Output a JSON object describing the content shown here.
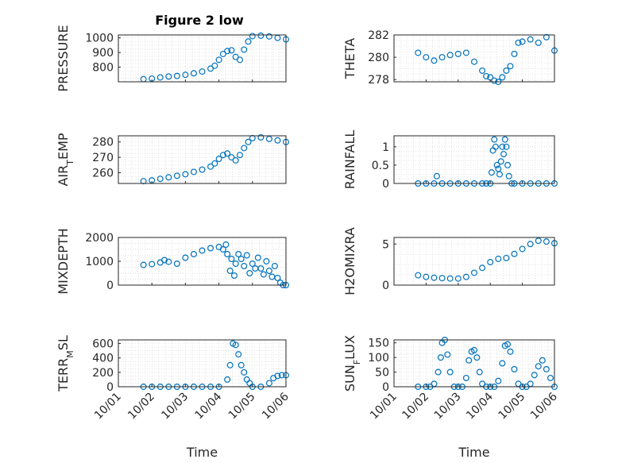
{
  "figure": {
    "title": "Figure 2 low",
    "xlabel": "Time",
    "date_tick_labels": [
      "10/01",
      "10/02",
      "10/03",
      "10/04",
      "10/05",
      "10/06"
    ],
    "marker_color": "#0072bd",
    "grid_color": "#d9d9d9",
    "axis_color": "#262626"
  },
  "chart_data": [
    {
      "type": "scatter",
      "name": "pressure-panel",
      "title": "Figure 2 low",
      "xlabel": "",
      "ylabel": "PRESSURE",
      "xlim": [
        "10/01",
        "10/06"
      ],
      "ylim": [
        700,
        1020
      ],
      "yticks": [
        800,
        900,
        1000
      ],
      "yticklabels": [
        "800",
        "900",
        "1000"
      ],
      "grid": true,
      "marker": "open-circle",
      "xtick_labels_shown": false,
      "x": [
        "10/01 18:00",
        "10/02 00:00",
        "10/02 06:00",
        "10/02 12:00",
        "10/02 18:00",
        "10/03 00:00",
        "10/03 06:00",
        "10/03 12:00",
        "10/03 18:00",
        "10/03 21:00",
        "10/04 00:00",
        "10/04 03:00",
        "10/04 06:00",
        "10/04 09:00",
        "10/04 12:00",
        "10/04 15:00",
        "10/04 18:00",
        "10/04 21:00",
        "10/05 00:00",
        "10/05 06:00",
        "10/05 12:00",
        "10/05 18:00",
        "10/06 00:00"
      ],
      "values": [
        718,
        722,
        730,
        736,
        740,
        748,
        758,
        770,
        790,
        810,
        850,
        890,
        910,
        915,
        870,
        850,
        920,
        975,
        1012,
        1015,
        1010,
        1000,
        990
      ]
    },
    {
      "type": "scatter",
      "name": "theta-panel",
      "xlabel": "",
      "ylabel": "THETA",
      "xlim": [
        "10/01",
        "10/06"
      ],
      "ylim": [
        277.8,
        282
      ],
      "yticks": [
        278,
        280,
        282
      ],
      "yticklabels": [
        "278",
        "280",
        "282"
      ],
      "grid": true,
      "marker": "open-circle",
      "xtick_labels_shown": false,
      "x": [
        "10/01 18:00",
        "10/02 00:00",
        "10/02 06:00",
        "10/02 12:00",
        "10/02 18:00",
        "10/03 00:00",
        "10/03 06:00",
        "10/03 12:00",
        "10/03 18:00",
        "10/03 21:00",
        "10/04 00:00",
        "10/04 03:00",
        "10/04 06:00",
        "10/04 09:00",
        "10/04 12:00",
        "10/04 15:00",
        "10/04 18:00",
        "10/04 21:00",
        "10/05 00:00",
        "10/05 06:00",
        "10/05 12:00",
        "10/05 18:00",
        "10/06 00:00"
      ],
      "values": [
        280.4,
        280.0,
        279.7,
        280.0,
        280.2,
        280.3,
        280.4,
        279.6,
        278.8,
        278.3,
        278.2,
        277.9,
        277.8,
        278.2,
        278.8,
        279.2,
        280.3,
        281.3,
        281.4,
        281.6,
        281.3,
        281.8,
        280.6
      ]
    },
    {
      "type": "scatter",
      "name": "air-temp-panel",
      "xlabel": "",
      "ylabel": "AIR_TEMP",
      "xlim": [
        "10/01",
        "10/06"
      ],
      "ylim": [
        253,
        284
      ],
      "yticks": [
        260,
        270,
        280
      ],
      "yticklabels": [
        "260",
        "270",
        "280"
      ],
      "grid": true,
      "marker": "open-circle",
      "xtick_labels_shown": false,
      "x": [
        "10/01 18:00",
        "10/02 00:00",
        "10/02 06:00",
        "10/02 12:00",
        "10/02 18:00",
        "10/03 00:00",
        "10/03 06:00",
        "10/03 12:00",
        "10/03 18:00",
        "10/03 21:00",
        "10/04 00:00",
        "10/04 03:00",
        "10/04 06:00",
        "10/04 09:00",
        "10/04 12:00",
        "10/04 15:00",
        "10/04 18:00",
        "10/04 21:00",
        "10/05 00:00",
        "10/05 06:00",
        "10/05 12:00",
        "10/05 18:00",
        "10/06 00:00"
      ],
      "values": [
        254.5,
        255.0,
        256.0,
        257.0,
        258.0,
        259.0,
        260.5,
        262.0,
        264.0,
        266.0,
        269.0,
        271.5,
        272.5,
        270.0,
        268.0,
        271.5,
        276.0,
        280.0,
        282.5,
        283.0,
        282.0,
        281.0,
        280.0
      ]
    },
    {
      "type": "scatter",
      "name": "rainfall-panel",
      "xlabel": "",
      "ylabel": "RAINFALL",
      "xlim": [
        "10/01",
        "10/06"
      ],
      "ylim": [
        0,
        1.3
      ],
      "yticks": [
        0,
        0.5,
        1
      ],
      "yticklabels": [
        "0",
        "0.5",
        "1"
      ],
      "grid": true,
      "marker": "open-circle",
      "xtick_labels_shown": false,
      "x": [
        "10/01 18:00",
        "10/02 00:00",
        "10/02 06:00",
        "10/02 08:00",
        "10/02 12:00",
        "10/02 18:00",
        "10/03 00:00",
        "10/03 06:00",
        "10/03 12:00",
        "10/03 18:00",
        "10/03 21:00",
        "10/04 00:00",
        "10/04 01:00",
        "10/04 02:00",
        "10/04 03:00",
        "10/04 04:00",
        "10/04 05:00",
        "10/04 06:00",
        "10/04 07:00",
        "10/04 08:00",
        "10/04 09:00",
        "10/04 10:00",
        "10/04 11:00",
        "10/04 12:00",
        "10/04 13:00",
        "10/04 14:00",
        "10/04 16:00",
        "10/04 18:00",
        "10/05 00:00",
        "10/05 06:00",
        "10/05 12:00",
        "10/05 18:00",
        "10/06 00:00"
      ],
      "values": [
        0,
        0,
        0,
        0.2,
        0,
        0,
        0,
        0,
        0,
        0,
        0,
        0,
        0.3,
        0.9,
        1.2,
        1.0,
        0.5,
        0.4,
        0.25,
        0.6,
        1.0,
        0.8,
        1.2,
        1.0,
        0.5,
        0.2,
        0,
        0,
        0,
        0,
        0,
        0,
        0
      ]
    },
    {
      "type": "scatter",
      "name": "mixdepth-panel",
      "xlabel": "",
      "ylabel": "MIXDEPTH",
      "xlim": [
        "10/01",
        "10/06"
      ],
      "ylim": [
        0,
        2000
      ],
      "yticks": [
        0,
        1000,
        2000
      ],
      "yticklabels": [
        "0",
        "1000",
        "2000"
      ],
      "grid": true,
      "marker": "open-circle",
      "xtick_labels_shown": false,
      "x": [
        "10/01 18:00",
        "10/02 00:00",
        "10/02 06:00",
        "10/02 09:00",
        "10/02 12:00",
        "10/02 18:00",
        "10/03 00:00",
        "10/03 06:00",
        "10/03 12:00",
        "10/03 18:00",
        "10/04 00:00",
        "10/04 03:00",
        "10/04 05:00",
        "10/04 06:00",
        "10/04 08:00",
        "10/04 09:00",
        "10/04 11:00",
        "10/04 12:00",
        "10/04 14:00",
        "10/04 16:00",
        "10/04 18:00",
        "10/04 20:00",
        "10/04 22:00",
        "10/05 00:00",
        "10/05 02:00",
        "10/05 04:00",
        "10/05 06:00",
        "10/05 08:00",
        "10/05 10:00",
        "10/05 12:00",
        "10/05 14:00",
        "10/05 16:00",
        "10/05 18:00",
        "10/05 20:00",
        "10/05 22:00",
        "10/06 00:00"
      ],
      "values": [
        850,
        880,
        950,
        1050,
        980,
        900,
        1150,
        1300,
        1450,
        1550,
        1600,
        1500,
        1700,
        1300,
        600,
        1100,
        400,
        900,
        1300,
        1100,
        800,
        1250,
        500,
        900,
        700,
        1150,
        700,
        450,
        1000,
        600,
        350,
        800,
        300,
        100,
        0,
        0
      ]
    },
    {
      "type": "scatter",
      "name": "h2omixra-panel",
      "xlabel": "",
      "ylabel": "H2OMIXRA",
      "xlim": [
        "10/01",
        "10/06"
      ],
      "ylim": [
        0,
        5.8
      ],
      "yticks": [
        0,
        5
      ],
      "yticklabels": [
        "0",
        "5"
      ],
      "grid": true,
      "marker": "open-circle",
      "xtick_labels_shown": false,
      "x": [
        "10/01 18:00",
        "10/02 00:00",
        "10/02 06:00",
        "10/02 12:00",
        "10/02 18:00",
        "10/03 00:00",
        "10/03 06:00",
        "10/03 12:00",
        "10/03 18:00",
        "10/04 00:00",
        "10/04 06:00",
        "10/04 12:00",
        "10/04 18:00",
        "10/05 00:00",
        "10/05 06:00",
        "10/05 12:00",
        "10/05 18:00",
        "10/06 00:00"
      ],
      "values": [
        1.2,
        1.0,
        0.9,
        0.85,
        0.8,
        0.8,
        1.0,
        1.5,
        2.1,
        2.8,
        3.2,
        3.3,
        3.8,
        4.4,
        5.0,
        5.4,
        5.3,
        5.1
      ]
    },
    {
      "type": "scatter",
      "name": "terr-msl-panel",
      "xlabel": "Time",
      "ylabel": "TERR_MSL",
      "xlim": [
        "10/01",
        "10/06"
      ],
      "ylim": [
        0,
        650
      ],
      "yticks": [
        0,
        200,
        400,
        600
      ],
      "yticklabels": [
        "0",
        "200",
        "400",
        "600"
      ],
      "grid": true,
      "marker": "open-circle",
      "xtick_labels_shown": true,
      "x": [
        "10/01 18:00",
        "10/02 00:00",
        "10/02 06:00",
        "10/02 12:00",
        "10/02 18:00",
        "10/03 00:00",
        "10/03 06:00",
        "10/03 12:00",
        "10/03 18:00",
        "10/04 00:00",
        "10/04 06:00",
        "10/04 08:00",
        "10/04 10:00",
        "10/04 12:00",
        "10/04 14:00",
        "10/04 16:00",
        "10/04 18:00",
        "10/04 20:00",
        "10/04 22:00",
        "10/05 00:00",
        "10/05 06:00",
        "10/05 12:00",
        "10/05 15:00",
        "10/05 18:00",
        "10/05 21:00",
        "10/06 00:00"
      ],
      "values": [
        0,
        0,
        0,
        0,
        0,
        0,
        0,
        0,
        0,
        0,
        100,
        300,
        600,
        580,
        450,
        300,
        200,
        100,
        50,
        0,
        0,
        50,
        120,
        150,
        160,
        160
      ]
    },
    {
      "type": "scatter",
      "name": "sun-flux-panel",
      "xlabel": "Time",
      "ylabel": "SUN_FLUX",
      "xlim": [
        "10/01",
        "10/06"
      ],
      "ylim": [
        0,
        160
      ],
      "yticks": [
        0,
        50,
        100,
        150
      ],
      "yticklabels": [
        "0",
        "50",
        "100",
        "150"
      ],
      "grid": true,
      "marker": "open-circle",
      "xtick_labels_shown": true,
      "x": [
        "10/01 18:00",
        "10/02 00:00",
        "10/02 03:00",
        "10/02 06:00",
        "10/02 09:00",
        "10/02 11:00",
        "10/02 12:00",
        "10/02 14:00",
        "10/02 16:00",
        "10/02 18:00",
        "10/02 21:00",
        "10/03 00:00",
        "10/03 03:00",
        "10/03 06:00",
        "10/03 08:00",
        "10/03 10:00",
        "10/03 12:00",
        "10/03 14:00",
        "10/03 16:00",
        "10/03 18:00",
        "10/03 21:00",
        "10/04 00:00",
        "10/04 03:00",
        "10/04 06:00",
        "10/04 09:00",
        "10/04 11:00",
        "10/04 13:00",
        "10/04 15:00",
        "10/04 18:00",
        "10/04 21:00",
        "10/05 00:00",
        "10/05 03:00",
        "10/05 06:00",
        "10/05 09:00",
        "10/05 12:00",
        "10/05 15:00",
        "10/05 18:00",
        "10/05 21:00",
        "10/06 00:00"
      ],
      "values": [
        0,
        0,
        0,
        10,
        50,
        100,
        150,
        160,
        110,
        50,
        0,
        0,
        0,
        30,
        90,
        120,
        125,
        100,
        50,
        10,
        0,
        0,
        0,
        20,
        80,
        140,
        145,
        120,
        60,
        10,
        0,
        0,
        10,
        40,
        70,
        90,
        60,
        30,
        0
      ]
    }
  ]
}
